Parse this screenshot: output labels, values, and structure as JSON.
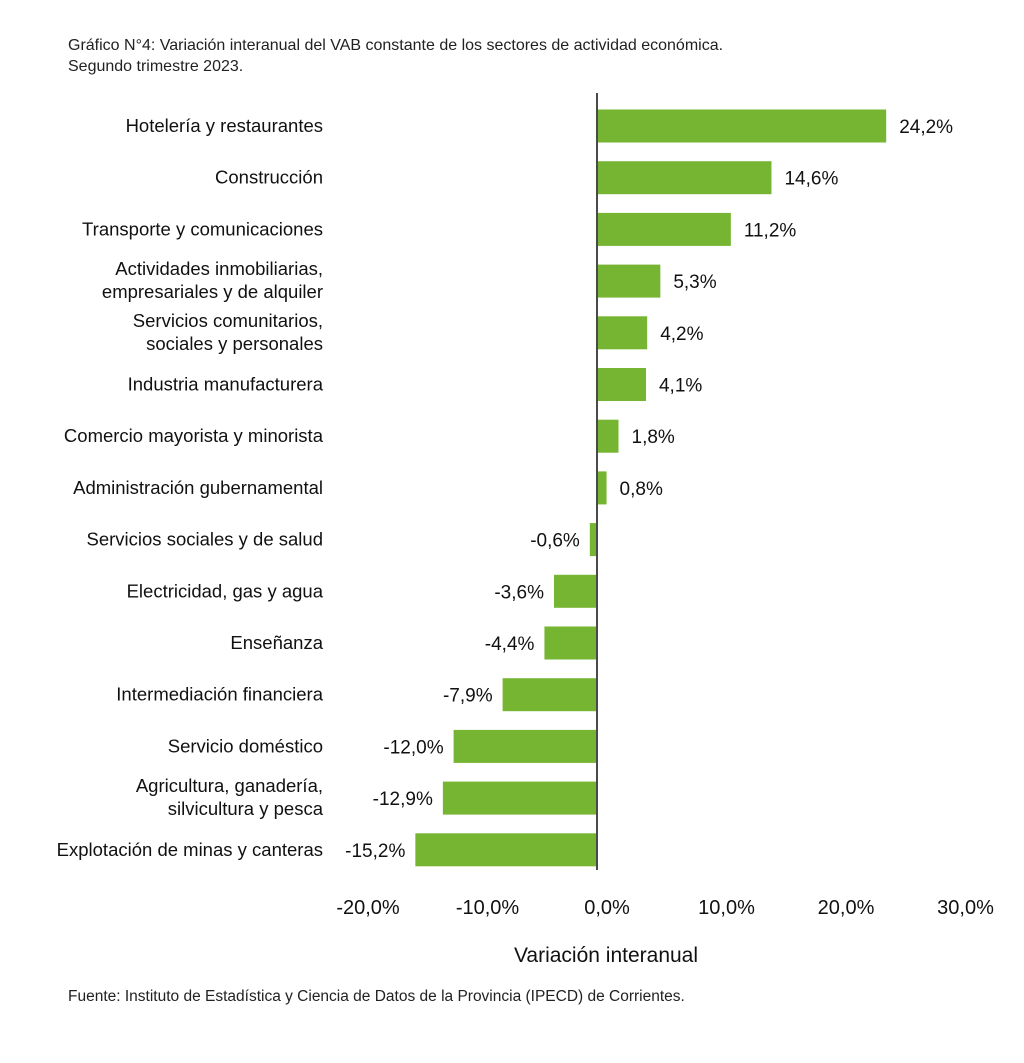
{
  "title_line1": "Gráfico N°4: Variación interanual del VAB constante de los sectores de actividad económica.",
  "title_line2": "Segundo trimestre 2023.",
  "source": "Fuente: Instituto de Estadística y Ciencia de Datos de la Provincia (IPECD) de Corrientes.",
  "chart_data": {
    "type": "bar",
    "orientation": "horizontal",
    "categories": [
      [
        "Hotelería y restaurantes"
      ],
      [
        "Construcción"
      ],
      [
        "Transporte y comunicaciones"
      ],
      [
        "Actividades inmobiliarias,",
        "empresariales y de alquiler"
      ],
      [
        "Servicios comunitarios,",
        "sociales y personales"
      ],
      [
        "Industria manufacturera"
      ],
      [
        "Comercio mayorista y minorista"
      ],
      [
        "Administración gubernamental"
      ],
      [
        "Servicios sociales y de salud"
      ],
      [
        "Electricidad, gas y agua"
      ],
      [
        "Enseñanza"
      ],
      [
        "Intermediación financiera"
      ],
      [
        "Servicio doméstico"
      ],
      [
        "Agricultura, ganadería,",
        "silvicultura y pesca"
      ],
      [
        "Explotación de minas y canteras"
      ]
    ],
    "values": [
      24.2,
      14.6,
      11.2,
      5.3,
      4.2,
      4.1,
      1.8,
      0.8,
      -0.6,
      -3.6,
      -4.4,
      -7.9,
      -12.0,
      -12.9,
      -15.2
    ],
    "value_labels": [
      "24,2%",
      "14,6%",
      "11,2%",
      "5,3%",
      "4,2%",
      "4,1%",
      "1,8%",
      "0,8%",
      "-0,6%",
      "-3,6%",
      "-4,4%",
      "-7,9%",
      "-12,0%",
      "-12,9%",
      "-15,2%"
    ],
    "xlim": [
      -20,
      30
    ],
    "xticks": [
      -20,
      -10,
      0,
      10,
      20,
      30
    ],
    "xtick_labels": [
      "-20,0%",
      "-10,0%",
      "0,0%",
      "10,0%",
      "20,0%",
      "30,0%"
    ],
    "xlabel": "Variación interanual",
    "ylabel": "",
    "bar_color": "#76b531",
    "grid": false,
    "legend": "none"
  }
}
